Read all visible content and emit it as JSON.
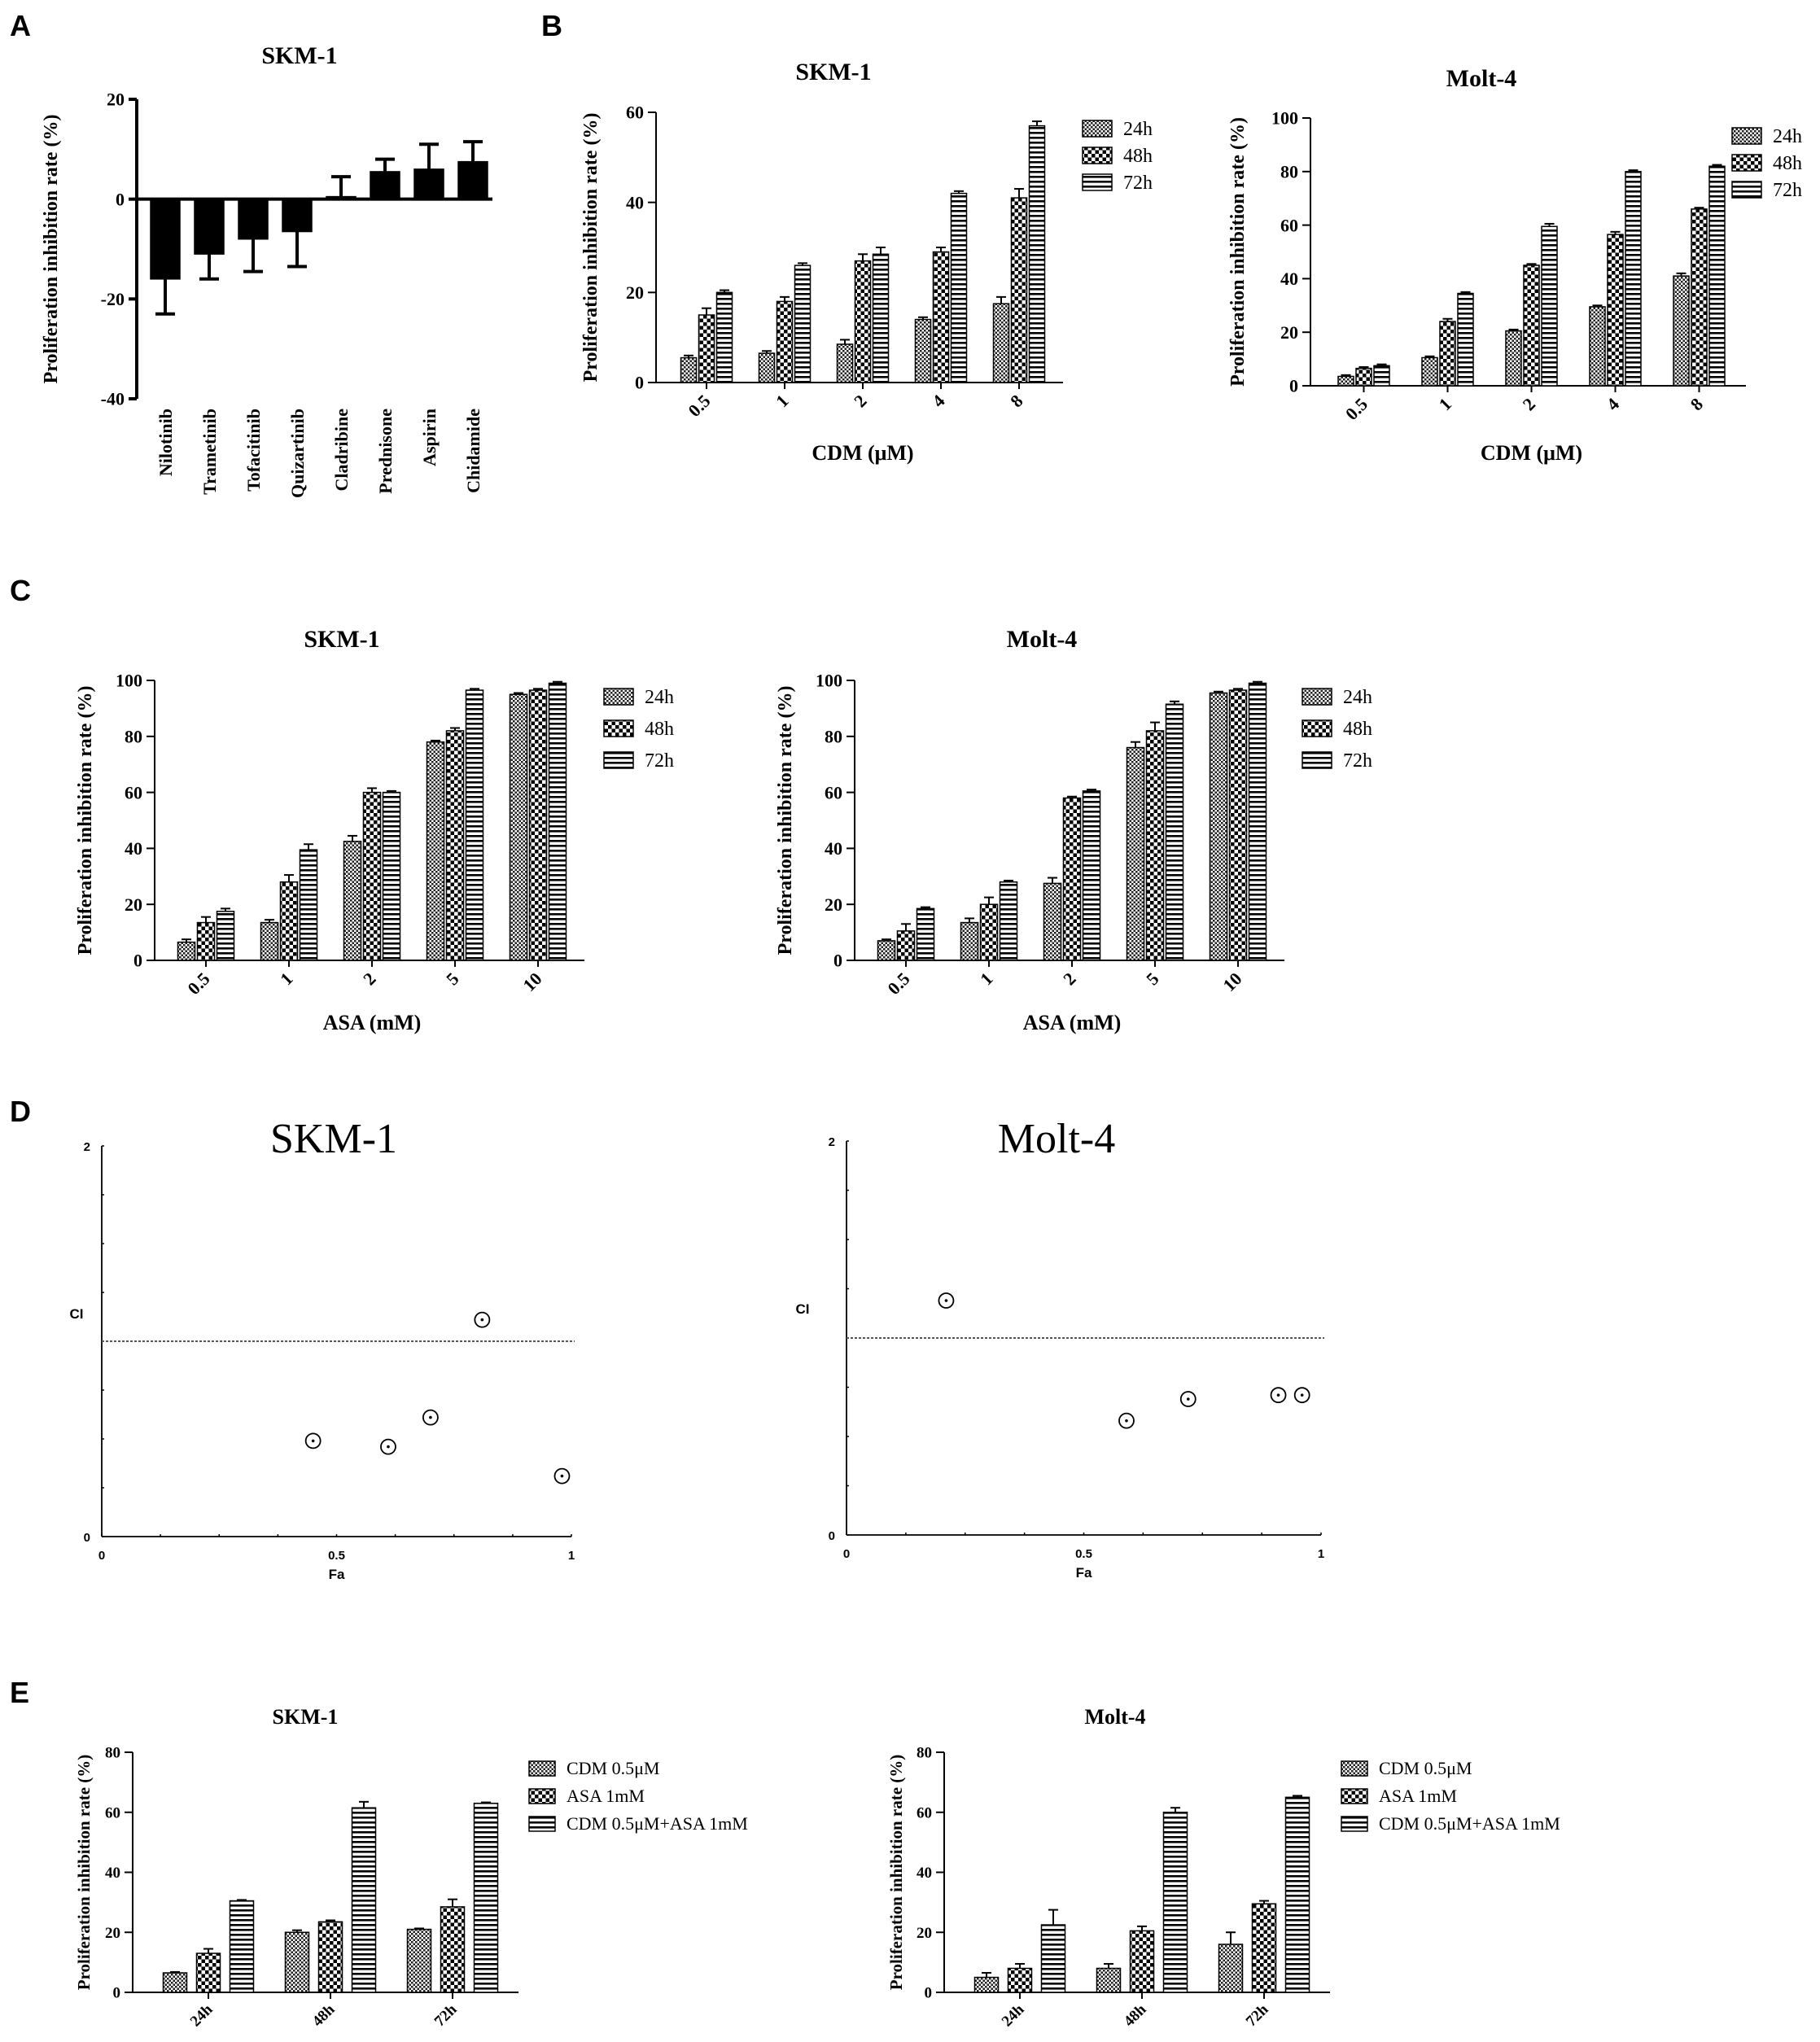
{
  "panel_letters": [
    "A",
    "B",
    "C",
    "D",
    "E"
  ],
  "chart_data": [
    {
      "id": "A",
      "type": "bar",
      "title": "SKM-1",
      "xlabel": "",
      "ylabel": "Proliferation inhibition rate (%)",
      "ylim": [
        -40,
        20
      ],
      "yticks": [
        -40,
        -20,
        0,
        20
      ],
      "categories": [
        "Nilotinib",
        "Trametinib",
        "Tofacitinib",
        "Quizartinib",
        "Cladribine",
        "Prednisone",
        "Aspirin",
        "Chidamide"
      ],
      "series": [
        {
          "name": "",
          "pattern": "solid",
          "values": [
            -16,
            -11,
            -8,
            -6.5,
            0.5,
            5.5,
            6,
            7.5
          ],
          "errors": [
            7,
            5,
            6.5,
            7,
            4,
            2.5,
            5,
            4
          ]
        }
      ]
    },
    {
      "id": "B1",
      "type": "bar",
      "title": "SKM-1",
      "xlabel": "CDM (μM)",
      "ylabel": "Proliferation inhibition rate (%)",
      "ylim": [
        0,
        60
      ],
      "yticks": [
        0,
        20,
        40,
        60
      ],
      "categories": [
        "0.5",
        "1",
        "2",
        "4",
        "8"
      ],
      "series": [
        {
          "name": "24h",
          "pattern": "checker",
          "values": [
            5.5,
            6.5,
            8.5,
            14,
            17.5
          ],
          "errors": [
            0.5,
            0.5,
            1,
            0.5,
            1.5
          ]
        },
        {
          "name": "48h",
          "pattern": "check-large",
          "values": [
            15,
            18,
            27,
            29,
            41
          ],
          "errors": [
            1.5,
            1,
            1.5,
            1,
            2
          ]
        },
        {
          "name": "72h",
          "pattern": "hstripe",
          "values": [
            20,
            26,
            28.5,
            42,
            57
          ],
          "errors": [
            0.5,
            0.5,
            1.5,
            0.5,
            1
          ]
        }
      ]
    },
    {
      "id": "B2",
      "type": "bar",
      "title": "Molt-4",
      "xlabel": "CDM (μM)",
      "ylabel": "Proliferation inhibition rate (%)",
      "ylim": [
        0,
        100
      ],
      "yticks": [
        0,
        20,
        40,
        60,
        80,
        100
      ],
      "categories": [
        "0.5",
        "1",
        "2",
        "4",
        "8"
      ],
      "series": [
        {
          "name": "24h",
          "pattern": "checker",
          "values": [
            3.5,
            10.5,
            20.5,
            29.5,
            41
          ],
          "errors": [
            0.5,
            0.5,
            0.5,
            0.5,
            1
          ]
        },
        {
          "name": "48h",
          "pattern": "check-large",
          "values": [
            6.5,
            24,
            45,
            56.5,
            66
          ],
          "errors": [
            0.5,
            1,
            0.5,
            1,
            0.5
          ]
        },
        {
          "name": "72h",
          "pattern": "hstripe",
          "values": [
            7.5,
            34.5,
            59.5,
            80,
            82
          ],
          "errors": [
            0.5,
            0.5,
            1,
            0.5,
            0.5
          ]
        }
      ]
    },
    {
      "id": "C1",
      "type": "bar",
      "title": "SKM-1",
      "xlabel": "ASA (mM)",
      "ylabel": "Proliferation inhibition rate (%)",
      "ylim": [
        0,
        100
      ],
      "yticks": [
        0,
        20,
        40,
        60,
        80,
        100
      ],
      "categories": [
        "0.5",
        "1",
        "2",
        "5",
        "10"
      ],
      "series": [
        {
          "name": "24h",
          "pattern": "checker",
          "values": [
            6.5,
            13.5,
            42.5,
            78,
            95
          ],
          "errors": [
            1,
            1,
            2,
            0.5,
            0.5
          ]
        },
        {
          "name": "48h",
          "pattern": "check-large",
          "values": [
            13.5,
            28,
            60,
            82,
            96.5
          ],
          "errors": [
            2,
            2.5,
            1.5,
            1,
            0.5
          ]
        },
        {
          "name": "72h",
          "pattern": "hstripe",
          "values": [
            17.5,
            39.5,
            60,
            96.5,
            99
          ],
          "errors": [
            1,
            2,
            0.5,
            0.5,
            0.5
          ]
        }
      ]
    },
    {
      "id": "C2",
      "type": "bar",
      "title": "Molt-4",
      "xlabel": "ASA (mM)",
      "ylabel": "Proliferation inhibition rate (%)",
      "ylim": [
        0,
        100
      ],
      "yticks": [
        0,
        20,
        40,
        60,
        80,
        100
      ],
      "categories": [
        "0.5",
        "1",
        "2",
        "5",
        "10"
      ],
      "series": [
        {
          "name": "24h",
          "pattern": "checker",
          "values": [
            7,
            13.5,
            27.5,
            76,
            95.5
          ],
          "errors": [
            0.5,
            1.5,
            2,
            2,
            0.5
          ]
        },
        {
          "name": "48h",
          "pattern": "check-large",
          "values": [
            10.5,
            20,
            58,
            82,
            96.5
          ],
          "errors": [
            2.5,
            2.5,
            0.5,
            3,
            0.5
          ]
        },
        {
          "name": "72h",
          "pattern": "hstripe",
          "values": [
            18.5,
            28,
            60.5,
            91.5,
            99
          ],
          "errors": [
            0.5,
            0.5,
            0.5,
            1,
            0.5
          ]
        }
      ]
    },
    {
      "id": "D1",
      "type": "scatter",
      "title": "SKM-1",
      "xlabel": "Fa",
      "ylabel": "CI",
      "xlim": [
        0,
        1
      ],
      "ylim": [
        0,
        2
      ],
      "xticks": [
        "0",
        "0.5",
        "1"
      ],
      "yticks": [
        "0",
        "2"
      ],
      "reference_line": 1,
      "points": [
        [
          0.45,
          0.49
        ],
        [
          0.61,
          0.46
        ],
        [
          0.7,
          0.61
        ],
        [
          0.81,
          1.11
        ],
        [
          0.98,
          0.31
        ]
      ]
    },
    {
      "id": "D2",
      "type": "scatter",
      "title": "Molt-4",
      "xlabel": "Fa",
      "ylabel": "CI",
      "xlim": [
        0,
        1
      ],
      "ylim": [
        0,
        2
      ],
      "xticks": [
        "0",
        "0.5",
        "1"
      ],
      "yticks": [
        "0",
        "2"
      ],
      "reference_line": 1,
      "points": [
        [
          0.21,
          1.19
        ],
        [
          0.59,
          0.58
        ],
        [
          0.72,
          0.69
        ],
        [
          0.91,
          0.71
        ],
        [
          0.96,
          0.71
        ]
      ]
    },
    {
      "id": "E1",
      "type": "bar",
      "title": "SKM-1",
      "xlabel": "",
      "ylabel": "Proliferation inhibition rate (%)",
      "ylim": [
        0,
        80
      ],
      "yticks": [
        0,
        20,
        40,
        60,
        80
      ],
      "categories": [
        "24h",
        "48h",
        "72h"
      ],
      "series": [
        {
          "name": "CDM 0.5μM",
          "pattern": "checker",
          "values": [
            6.5,
            20,
            21
          ],
          "errors": [
            0.3,
            0.7,
            0.3
          ]
        },
        {
          "name": "ASA 1mM",
          "pattern": "check-large",
          "values": [
            13,
            23.5,
            28.5
          ],
          "errors": [
            1.5,
            0.5,
            2.5
          ]
        },
        {
          "name": "CDM 0.5μM+ASA 1mM",
          "pattern": "hstripe",
          "values": [
            30.5,
            61.5,
            63
          ],
          "errors": [
            0.3,
            2,
            0.3
          ]
        }
      ]
    },
    {
      "id": "E2",
      "type": "bar",
      "title": "Molt-4",
      "xlabel": "",
      "ylabel": "Proliferation inhibition rate (%)",
      "ylim": [
        0,
        80
      ],
      "yticks": [
        0,
        20,
        40,
        60,
        80
      ],
      "categories": [
        "24h",
        "48h",
        "72h"
      ],
      "series": [
        {
          "name": "CDM 0.5μM",
          "pattern": "checker",
          "values": [
            5,
            8,
            16
          ],
          "errors": [
            1.5,
            1.5,
            4
          ]
        },
        {
          "name": "ASA 1mM",
          "pattern": "check-large",
          "values": [
            8,
            20.5,
            29.5
          ],
          "errors": [
            1.5,
            1.5,
            1
          ]
        },
        {
          "name": "CDM 0.5μM+ASA 1mM",
          "pattern": "hstripe",
          "values": [
            22.5,
            60,
            65
          ],
          "errors": [
            5,
            1.5,
            0.5
          ]
        }
      ]
    }
  ]
}
